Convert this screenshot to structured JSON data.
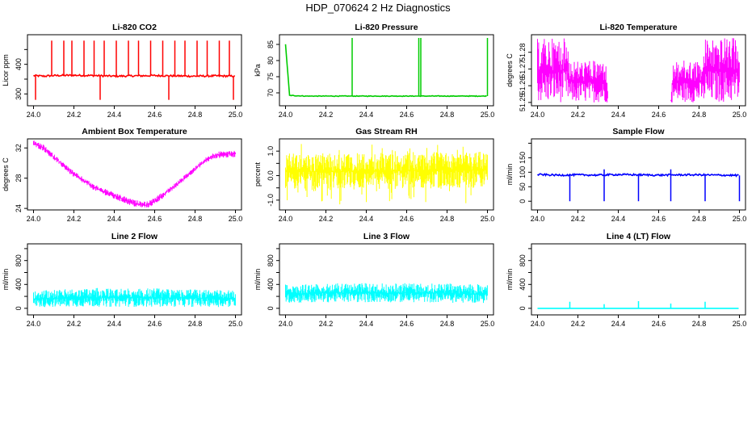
{
  "figure": {
    "title": "HDP_070624  2 Hz Diagnostics"
  },
  "chart_data": [
    {
      "type": "line",
      "title": "Li-820 CO2",
      "xlabel": "",
      "ylabel": "Licor ppm",
      "color": "#ff0000",
      "xlim": [
        23.97,
        25.03
      ],
      "ylim": [
        260,
        500
      ],
      "xticks": [
        24.0,
        24.2,
        24.4,
        24.6,
        24.8,
        25.0
      ],
      "xtick_labels": [
        "24.0",
        "24.2",
        "24.4",
        "24.6",
        "24.8",
        "25.0"
      ],
      "yticks": [
        300,
        350,
        400,
        450
      ],
      "ytick_labels": [
        "300",
        "",
        "400",
        ""
      ],
      "x": [
        24.0,
        24.05,
        24.1,
        24.2,
        24.3,
        24.4,
        24.5,
        24.6,
        24.7,
        24.8,
        24.9,
        25.0
      ],
      "y": [
        362,
        360,
        362,
        363,
        362,
        360,
        361,
        362,
        361,
        360,
        361,
        360
      ],
      "spikes_up": [
        24.09,
        24.15,
        24.19,
        24.25,
        24.3,
        24.35,
        24.41,
        24.47,
        24.52,
        24.58,
        24.64,
        24.7,
        24.75,
        24.81,
        24.86,
        24.92,
        24.97
      ],
      "spike_up_value": 480,
      "spikes_down": [
        24.01,
        24.33,
        24.67,
        24.99
      ],
      "spike_down_value": 280,
      "noise": 3
    },
    {
      "type": "line",
      "title": "Li-820 Pressure",
      "xlabel": "",
      "ylabel": "kPa",
      "color": "#00cc00",
      "xlim": [
        23.97,
        25.03
      ],
      "ylim": [
        66,
        88
      ],
      "xticks": [
        24.0,
        24.2,
        24.4,
        24.6,
        24.8,
        25.0
      ],
      "xtick_labels": [
        "24.0",
        "24.2",
        "24.4",
        "24.6",
        "24.8",
        "25.0"
      ],
      "yticks": [
        70,
        75,
        80,
        85
      ],
      "ytick_labels": [
        "70",
        "75",
        "80",
        "85"
      ],
      "x": [
        24.0,
        24.02,
        24.1,
        24.2,
        24.3,
        24.4,
        24.5,
        24.6,
        24.7,
        24.8,
        24.9,
        25.0
      ],
      "y": [
        85,
        69.2,
        69,
        69,
        69,
        69,
        69,
        69,
        69,
        69,
        69,
        69
      ],
      "spikes_up": [
        24.33,
        24.66,
        24.67,
        25.0
      ],
      "spike_up_value": 87,
      "spikes_down": [],
      "noise": 0.1
    },
    {
      "type": "area",
      "title": "Li-820 Temperature",
      "xlabel": "",
      "ylabel": "degrees C",
      "color": "#ff00ff",
      "xlim": [
        23.97,
        25.03
      ],
      "ylim": [
        51.248,
        51.2905
      ],
      "xticks": [
        24.0,
        24.2,
        24.4,
        24.6,
        24.8,
        25.0
      ],
      "xtick_labels": [
        "24.0",
        "24.2",
        "24.4",
        "24.6",
        "24.8",
        "25.0"
      ],
      "yticks": [
        51.25,
        51.26,
        51.27,
        51.28
      ],
      "ytick_labels": [
        "51.25",
        "51.26",
        "51.27",
        "51.28"
      ],
      "x": [
        24.0,
        24.15,
        24.16,
        24.34,
        24.35,
        24.66,
        24.67,
        24.82,
        24.83,
        25.0
      ],
      "upper": [
        51.2885,
        51.2885,
        51.275,
        51.275,
        51.25,
        51.25,
        51.275,
        51.275,
        51.2885,
        51.2885
      ],
      "lower": [
        51.25,
        51.25,
        51.25,
        51.25,
        51.25,
        51.25,
        51.25,
        51.25,
        51.25,
        51.25
      ]
    },
    {
      "type": "area",
      "title": "Ambient Box Temperature",
      "xlabel": "",
      "ylabel": "degrees C",
      "color": "#ff00ff",
      "xlim": [
        23.97,
        25.03
      ],
      "ylim": [
        23.8,
        33.2
      ],
      "xticks": [
        24.0,
        24.2,
        24.4,
        24.6,
        24.8,
        25.0
      ],
      "xtick_labels": [
        "24.0",
        "24.2",
        "24.4",
        "24.6",
        "24.8",
        "25.0"
      ],
      "yticks": [
        24,
        28,
        32
      ],
      "ytick_labels": [
        "24",
        "28",
        "32"
      ],
      "x": [
        24.0,
        24.05,
        24.1,
        24.2,
        24.3,
        24.4,
        24.5,
        24.56,
        24.6,
        24.7,
        24.8,
        24.85,
        24.9,
        25.0
      ],
      "upper": [
        33.0,
        32.4,
        31.2,
        28.9,
        27.2,
        26.1,
        25.1,
        24.9,
        25.4,
        27.3,
        29.6,
        30.7,
        31.5,
        31.7
      ],
      "lower": [
        32.2,
        31.6,
        30.4,
        28.1,
        26.4,
        25.2,
        24.2,
        24.0,
        24.5,
        26.6,
        28.9,
        30.0,
        30.6,
        30.8
      ]
    },
    {
      "type": "area",
      "title": "Gas Stream RH",
      "xlabel": "",
      "ylabel": "percent",
      "color": "#ffff00",
      "xlim": [
        23.97,
        25.03
      ],
      "ylim": [
        -1.4,
        1.5
      ],
      "xticks": [
        24.0,
        24.2,
        24.4,
        24.6,
        24.8,
        25.0
      ],
      "xtick_labels": [
        "24.0",
        "24.2",
        "24.4",
        "24.6",
        "24.8",
        "25.0"
      ],
      "yticks": [
        -1.0,
        -0.5,
        0.0,
        0.5,
        1.0
      ],
      "ytick_labels": [
        "-1.0",
        "",
        "0.0",
        "",
        "1.0"
      ],
      "x": [
        24.0,
        25.0
      ],
      "upper": [
        0.9,
        1.0
      ],
      "lower": [
        -0.6,
        -0.5
      ],
      "outlier_min": -1.2,
      "outlier_max": 1.3
    },
    {
      "type": "line",
      "title": "Sample Flow",
      "xlabel": "",
      "ylabel": "ml/min",
      "color": "#0000ff",
      "xlim": [
        23.97,
        25.03
      ],
      "ylim": [
        -30,
        215
      ],
      "xticks": [
        24.0,
        24.2,
        24.4,
        24.6,
        24.8,
        25.0
      ],
      "xtick_labels": [
        "24.0",
        "24.2",
        "24.4",
        "24.6",
        "24.8",
        "25.0"
      ],
      "yticks": [
        0,
        50,
        100,
        150,
        200
      ],
      "ytick_labels": [
        "0",
        "50",
        "100",
        "150",
        ""
      ],
      "x": [
        24.0,
        24.1,
        24.2,
        24.3,
        24.4,
        24.5,
        24.6,
        24.7,
        24.8,
        24.9,
        25.0
      ],
      "y": [
        92,
        90,
        91,
        90,
        92,
        91,
        90,
        91,
        91,
        90,
        89
      ],
      "spikes_up": [
        24.33,
        24.66
      ],
      "spike_up_value": 110,
      "spikes_down": [
        24.16,
        24.33,
        24.5,
        24.66,
        24.83,
        25.0
      ],
      "spike_down_value": 0,
      "noise": 3
    },
    {
      "type": "area",
      "title": "Line 2 Flow",
      "xlabel": "",
      "ylabel": "ml/min",
      "color": "#00ffff",
      "xlim": [
        23.97,
        25.03
      ],
      "ylim": [
        -110,
        1080
      ],
      "xticks": [
        24.0,
        24.2,
        24.4,
        24.6,
        24.8,
        25.0
      ],
      "xtick_labels": [
        "24.0",
        "24.2",
        "24.4",
        "24.6",
        "24.8",
        "25.0"
      ],
      "yticks": [
        0,
        200,
        400,
        600,
        800,
        1000
      ],
      "ytick_labels": [
        "0",
        "",
        "400",
        "",
        "800",
        ""
      ],
      "x": [
        24.0,
        24.16,
        24.17,
        24.32,
        24.33,
        24.49,
        24.5,
        24.66,
        24.67,
        24.82,
        24.83,
        25.0
      ],
      "upper": [
        300,
        320,
        330,
        340,
        330,
        340,
        330,
        340,
        330,
        320,
        310,
        300
      ],
      "lower": [
        20,
        20,
        25,
        25,
        25,
        25,
        25,
        25,
        25,
        25,
        25,
        20
      ]
    },
    {
      "type": "area",
      "title": "Line 3 Flow",
      "xlabel": "",
      "ylabel": "ml/min",
      "color": "#00ffff",
      "xlim": [
        23.97,
        25.03
      ],
      "ylim": [
        -110,
        1080
      ],
      "xticks": [
        24.0,
        24.2,
        24.4,
        24.6,
        24.8,
        25.0
      ],
      "xtick_labels": [
        "24.0",
        "24.2",
        "24.4",
        "24.6",
        "24.8",
        "25.0"
      ],
      "yticks": [
        0,
        200,
        400,
        600,
        800,
        1000
      ],
      "ytick_labels": [
        "0",
        "",
        "400",
        "",
        "800",
        ""
      ],
      "x": [
        24.0,
        24.16,
        24.17,
        24.32,
        24.33,
        24.49,
        24.5,
        24.66,
        24.67,
        24.82,
        24.83,
        25.0
      ],
      "upper": [
        400,
        410,
        420,
        420,
        420,
        420,
        420,
        420,
        420,
        415,
        410,
        400
      ],
      "lower": [
        90,
        90,
        100,
        100,
        100,
        100,
        100,
        100,
        100,
        95,
        90,
        90
      ]
    },
    {
      "type": "line",
      "title": "Line 4 (LT) Flow",
      "xlabel": "",
      "ylabel": "ml/min",
      "color": "#00ffff",
      "xlim": [
        23.97,
        25.03
      ],
      "ylim": [
        -110,
        1080
      ],
      "xticks": [
        24.0,
        24.2,
        24.4,
        24.6,
        24.8,
        25.0
      ],
      "xtick_labels": [
        "24.0",
        "24.2",
        "24.4",
        "24.6",
        "24.8",
        "25.0"
      ],
      "yticks": [
        0,
        200,
        400,
        600,
        800,
        1000
      ],
      "ytick_labels": [
        "0",
        "",
        "400",
        "",
        "800",
        ""
      ],
      "x": [
        24.0,
        25.0
      ],
      "y": [
        0,
        0
      ],
      "spikes_up": [
        24.16,
        24.33,
        24.5,
        24.66,
        24.83
      ],
      "spike_up_values": [
        110,
        70,
        120,
        80,
        110
      ],
      "spikes_down": [],
      "noise": 0
    }
  ]
}
